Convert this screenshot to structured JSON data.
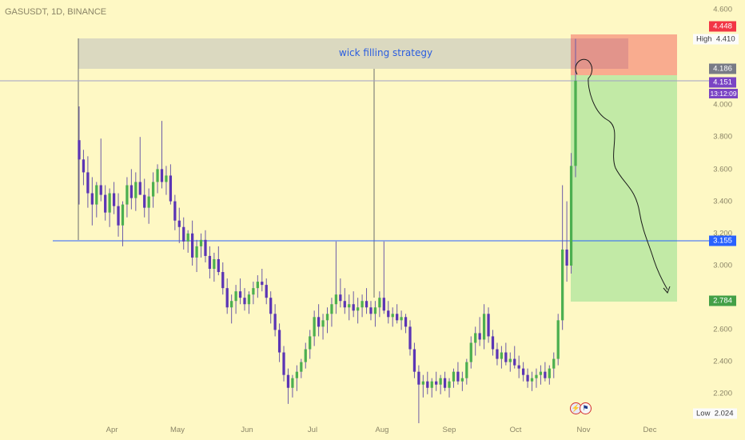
{
  "header": {
    "symbol": "GASUSDT, 1D, BINANCE"
  },
  "annotation": {
    "strategy_text": "wick filling strategy"
  },
  "colors": {
    "background": "#fef8c4",
    "up_candle": "#4caf50",
    "down_candle": "#5b35b5",
    "wick": "#6c5ba7",
    "price_line": "#2962ff",
    "zone_fill": "#d0d0c0",
    "stop_zone": "#f8a389",
    "target_zone": "#b7e8a1"
  },
  "price_axis": {
    "ticks": [
      "4.600",
      "4.000",
      "3.800",
      "3.600",
      "3.400",
      "3.200",
      "3.000",
      "2.600",
      "2.400",
      "2.200"
    ]
  },
  "time_axis": {
    "ticks": [
      "Apr",
      "May",
      "Jun",
      "Jul",
      "Aug",
      "Sep",
      "Oct",
      "Nov",
      "Dec"
    ]
  },
  "price_tags": {
    "stop": "4.448",
    "high_label": "High",
    "high_value": "4.410",
    "zone_top": "4.186",
    "current": "4.151",
    "countdown": "13:12:09",
    "horizontal": "3.155",
    "target": "2.784",
    "low_label": "Low",
    "low_value": "2.024"
  },
  "chart_data": {
    "type": "candlestick",
    "title": "GASUSDT, 1D, BINANCE",
    "ylim": [
      2.024,
      4.62
    ],
    "x": [
      "Apr",
      "May",
      "Jun",
      "Jul",
      "Aug",
      "Sep",
      "Oct",
      "Nov",
      "Dec"
    ],
    "series": [
      {
        "values": [
          [
            3.78,
            3.99,
            3.38,
            3.66
          ],
          [
            3.66,
            3.72,
            3.5,
            3.58
          ],
          [
            3.58,
            3.68,
            3.36,
            3.45
          ],
          [
            3.45,
            3.55,
            3.25,
            3.38
          ],
          [
            3.38,
            3.52,
            3.3,
            3.5
          ],
          [
            3.5,
            3.79,
            3.4,
            3.44
          ],
          [
            3.44,
            3.5,
            3.28,
            3.33
          ],
          [
            3.33,
            3.48,
            3.24,
            3.45
          ],
          [
            3.45,
            3.52,
            3.32,
            3.37
          ],
          [
            3.37,
            3.45,
            3.18,
            3.25
          ],
          [
            3.25,
            3.4,
            3.12,
            3.38
          ],
          [
            3.38,
            3.55,
            3.3,
            3.5
          ],
          [
            3.5,
            3.6,
            3.35,
            3.42
          ],
          [
            3.42,
            3.58,
            3.34,
            3.52
          ],
          [
            3.52,
            3.8,
            3.44,
            3.44
          ],
          [
            3.44,
            3.54,
            3.3,
            3.36
          ],
          [
            3.36,
            3.48,
            3.26,
            3.43
          ],
          [
            3.43,
            3.58,
            3.36,
            3.52
          ],
          [
            3.52,
            3.63,
            3.45,
            3.6
          ],
          [
            3.6,
            3.9,
            3.48,
            3.52
          ],
          [
            3.52,
            3.62,
            3.44,
            3.56
          ],
          [
            3.56,
            3.63,
            3.38,
            3.4
          ],
          [
            3.4,
            3.44,
            3.22,
            3.28
          ],
          [
            3.28,
            3.36,
            3.14,
            3.24
          ],
          [
            3.24,
            3.3,
            3.1,
            3.15
          ],
          [
            3.15,
            3.22,
            3.08,
            3.2
          ],
          [
            3.2,
            3.28,
            3.0,
            3.05
          ],
          [
            3.05,
            3.16,
            2.96,
            3.12
          ],
          [
            3.12,
            3.2,
            3.05,
            3.16
          ],
          [
            3.16,
            3.22,
            3.02,
            3.06
          ],
          [
            3.06,
            3.12,
            2.92,
            2.98
          ],
          [
            2.98,
            3.08,
            2.9,
            3.04
          ],
          [
            3.04,
            3.12,
            2.94,
            2.96
          ],
          [
            2.96,
            3.02,
            2.82,
            2.86
          ],
          [
            2.86,
            2.92,
            2.7,
            2.74
          ],
          [
            2.74,
            2.82,
            2.64,
            2.78
          ],
          [
            2.78,
            2.88,
            2.7,
            2.84
          ],
          [
            2.84,
            2.92,
            2.76,
            2.8
          ],
          [
            2.8,
            2.86,
            2.72,
            2.76
          ],
          [
            2.76,
            2.84,
            2.7,
            2.82
          ],
          [
            2.82,
            2.9,
            2.76,
            2.86
          ],
          [
            2.86,
            2.94,
            2.8,
            2.9
          ],
          [
            2.9,
            2.98,
            2.84,
            2.88
          ],
          [
            2.88,
            2.92,
            2.76,
            2.8
          ],
          [
            2.8,
            2.84,
            2.64,
            2.7
          ],
          [
            2.7,
            2.76,
            2.56,
            2.6
          ],
          [
            2.6,
            2.64,
            2.4,
            2.46
          ],
          [
            2.46,
            2.5,
            2.28,
            2.32
          ],
          [
            2.32,
            2.36,
            2.14,
            2.24
          ],
          [
            2.24,
            2.32,
            2.18,
            2.3
          ],
          [
            2.3,
            2.38,
            2.22,
            2.34
          ],
          [
            2.34,
            2.42,
            2.3,
            2.4
          ],
          [
            2.4,
            2.52,
            2.36,
            2.48
          ],
          [
            2.48,
            2.6,
            2.42,
            2.56
          ],
          [
            2.56,
            2.72,
            2.5,
            2.68
          ],
          [
            2.68,
            2.76,
            2.56,
            2.62
          ],
          [
            2.62,
            2.7,
            2.54,
            2.66
          ],
          [
            2.66,
            2.74,
            2.58,
            2.7
          ],
          [
            2.7,
            2.8,
            2.62,
            2.76
          ],
          [
            2.76,
            3.15,
            2.7,
            2.82
          ],
          [
            2.82,
            2.92,
            2.74,
            2.78
          ],
          [
            2.78,
            2.86,
            2.7,
            2.74
          ],
          [
            2.74,
            2.82,
            2.66,
            2.76
          ],
          [
            2.76,
            2.84,
            2.68,
            2.72
          ],
          [
            2.72,
            2.8,
            2.64,
            2.74
          ],
          [
            2.74,
            2.82,
            2.68,
            2.78
          ],
          [
            2.78,
            2.86,
            2.7,
            2.74
          ],
          [
            2.74,
            2.78,
            2.66,
            2.7
          ],
          [
            2.7,
            2.78,
            2.62,
            2.74
          ],
          [
            2.74,
            2.84,
            2.68,
            2.8
          ],
          [
            2.8,
            3.15,
            2.7,
            2.72
          ],
          [
            2.72,
            2.78,
            2.64,
            2.68
          ],
          [
            2.68,
            2.74,
            2.62,
            2.7
          ],
          [
            2.7,
            2.76,
            2.64,
            2.66
          ],
          [
            2.66,
            2.72,
            2.6,
            2.68
          ],
          [
            2.68,
            2.7,
            2.58,
            2.62
          ],
          [
            2.62,
            2.66,
            2.44,
            2.48
          ],
          [
            2.48,
            2.52,
            2.3,
            2.34
          ],
          [
            2.34,
            2.38,
            2.02,
            2.26
          ],
          [
            2.26,
            2.32,
            2.18,
            2.28
          ],
          [
            2.28,
            2.34,
            2.2,
            2.24
          ],
          [
            2.24,
            2.3,
            2.18,
            2.28
          ],
          [
            2.28,
            2.34,
            2.22,
            2.26
          ],
          [
            2.26,
            2.32,
            2.2,
            2.3
          ],
          [
            2.3,
            2.34,
            2.22,
            2.24
          ],
          [
            2.24,
            2.3,
            2.18,
            2.28
          ],
          [
            2.28,
            2.36,
            2.24,
            2.34
          ],
          [
            2.34,
            2.4,
            2.26,
            2.28
          ],
          [
            2.28,
            2.34,
            2.22,
            2.3
          ],
          [
            2.3,
            2.42,
            2.26,
            2.4
          ],
          [
            2.4,
            2.56,
            2.36,
            2.52
          ],
          [
            2.52,
            2.62,
            2.44,
            2.58
          ],
          [
            2.58,
            2.68,
            2.5,
            2.54
          ],
          [
            2.54,
            2.76,
            2.48,
            2.7
          ],
          [
            2.7,
            2.74,
            2.52,
            2.56
          ],
          [
            2.56,
            2.6,
            2.44,
            2.48
          ],
          [
            2.48,
            2.52,
            2.38,
            2.42
          ],
          [
            2.42,
            2.5,
            2.36,
            2.46
          ],
          [
            2.46,
            2.52,
            2.38,
            2.4
          ],
          [
            2.4,
            2.46,
            2.34,
            2.42
          ],
          [
            2.42,
            2.5,
            2.36,
            2.38
          ],
          [
            2.38,
            2.44,
            2.3,
            2.36
          ],
          [
            2.36,
            2.4,
            2.28,
            2.32
          ],
          [
            2.32,
            2.36,
            2.24,
            2.28
          ],
          [
            2.28,
            2.34,
            2.22,
            2.3
          ],
          [
            2.3,
            2.36,
            2.24,
            2.32
          ],
          [
            2.32,
            2.38,
            2.26,
            2.34
          ],
          [
            2.34,
            2.4,
            2.28,
            2.3
          ],
          [
            2.3,
            2.38,
            2.26,
            2.36
          ],
          [
            2.36,
            2.46,
            2.3,
            2.42
          ],
          [
            2.42,
            2.7,
            2.38,
            2.66
          ],
          [
            2.66,
            3.5,
            2.6,
            3.1
          ],
          [
            3.1,
            3.4,
            2.9,
            3.0
          ],
          [
            3.0,
            3.7,
            2.95,
            3.62
          ],
          [
            3.62,
            4.41,
            3.55,
            4.15
          ]
        ]
      }
    ]
  }
}
